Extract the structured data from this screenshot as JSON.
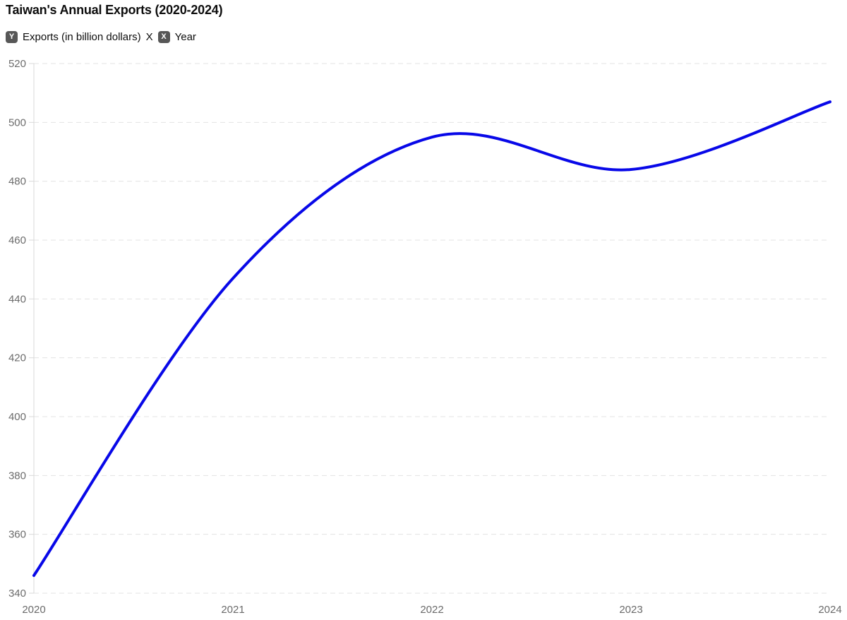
{
  "header": {
    "title": "Taiwan's Annual Exports (2020-2024)"
  },
  "legend": {
    "y_badge": "Y",
    "y_axis_label": "Exports (in billion dollars)",
    "separator": "X",
    "x_badge": "X",
    "x_axis_label": "Year"
  },
  "chart_data": {
    "type": "line",
    "title": "Taiwan's Annual Exports (2020-2024)",
    "xlabel": "Year",
    "ylabel": "Exports (in billion dollars)",
    "x": [
      2020,
      2021,
      2022,
      2023,
      2024
    ],
    "series": [
      {
        "name": "Exports (in billion dollars)",
        "values": [
          346,
          447,
          495,
          484,
          507
        ]
      }
    ],
    "ylim": [
      340,
      520
    ],
    "yticks": [
      340,
      360,
      380,
      400,
      420,
      440,
      460,
      480,
      500,
      520
    ],
    "grid": "horizontal-dashed",
    "legend_position": "none",
    "curve": "smooth-spline",
    "line_width": 4,
    "colors": {
      "line": "#0808e8",
      "grid": "#e3e3e3",
      "axis": "#d9d9d9",
      "tick_label": "#6b6b6b",
      "title": "#0d0d0d",
      "badge_bg": "#575757",
      "badge_text": "#ffffff",
      "background": "#ffffff"
    }
  }
}
